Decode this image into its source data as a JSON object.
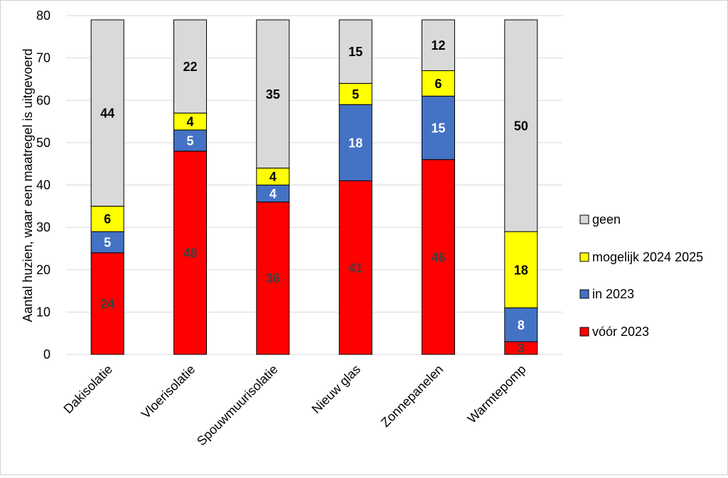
{
  "chart_data": {
    "type": "bar",
    "stacked": true,
    "title": "",
    "xlabel": "",
    "ylabel": "Aantal huzien, waar een maatregel is uitgevoerd",
    "ylim": [
      0,
      80
    ],
    "yticks": [
      0,
      10,
      20,
      30,
      40,
      50,
      60,
      70,
      80
    ],
    "grid": true,
    "legend_position": "right",
    "categories": [
      "Dakisolatie",
      "Vloerisolatie",
      "Spouwmuurisolatie",
      "Nieuw glas",
      "Zonnepanelen",
      "Warmtepomp"
    ],
    "series": [
      {
        "name": "vóór 2023",
        "color": "#ff0000",
        "label_color": "#404040",
        "values": [
          24,
          48,
          36,
          41,
          46,
          3
        ]
      },
      {
        "name": "in 2023",
        "color": "#4472c4",
        "label_color": "#ffffff",
        "values": [
          5,
          5,
          4,
          18,
          15,
          8
        ]
      },
      {
        "name": "mogelijk 2024 2025",
        "color": "#ffff00",
        "label_color": "#000000",
        "values": [
          6,
          4,
          4,
          5,
          6,
          18
        ]
      },
      {
        "name": "geen",
        "color": "#d9d9d9",
        "label_color": "#000000",
        "values": [
          44,
          22,
          35,
          15,
          12,
          50
        ]
      }
    ],
    "legend_order": [
      3,
      2,
      1,
      0
    ]
  }
}
